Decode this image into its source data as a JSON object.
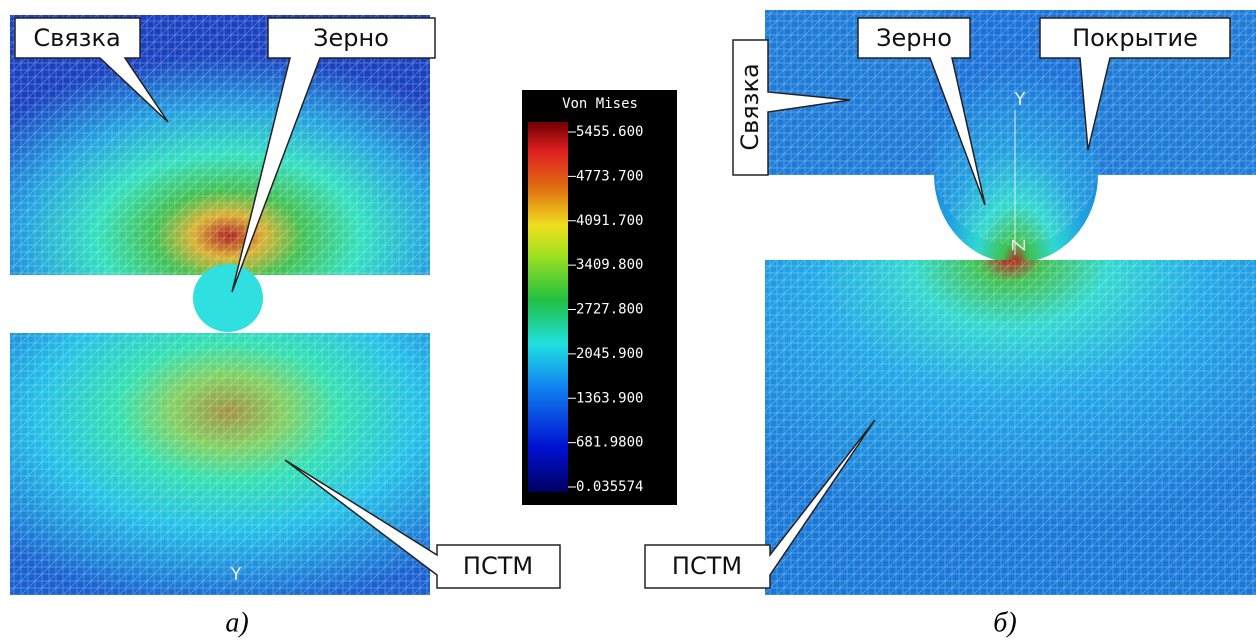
{
  "panel_a": {
    "labels": {
      "binder": "Связка",
      "grain": "Зерно",
      "pstm": "ПСТМ"
    },
    "axis": "Y",
    "caption": "а)"
  },
  "legend": {
    "title": "Von Mises",
    "ticks": [
      "5455.600",
      "4773.700",
      "4091.700",
      "3409.800",
      "2727.800",
      "2045.900",
      "1363.900",
      "681.9800",
      "0.035574"
    ]
  },
  "panel_b": {
    "labels": {
      "grain": "Зерно",
      "coating": "Покрытие",
      "binder": "Связка",
      "pstm": "ПСТМ"
    },
    "axis_y": "Y",
    "axis_z": "Z",
    "caption": "б)"
  }
}
